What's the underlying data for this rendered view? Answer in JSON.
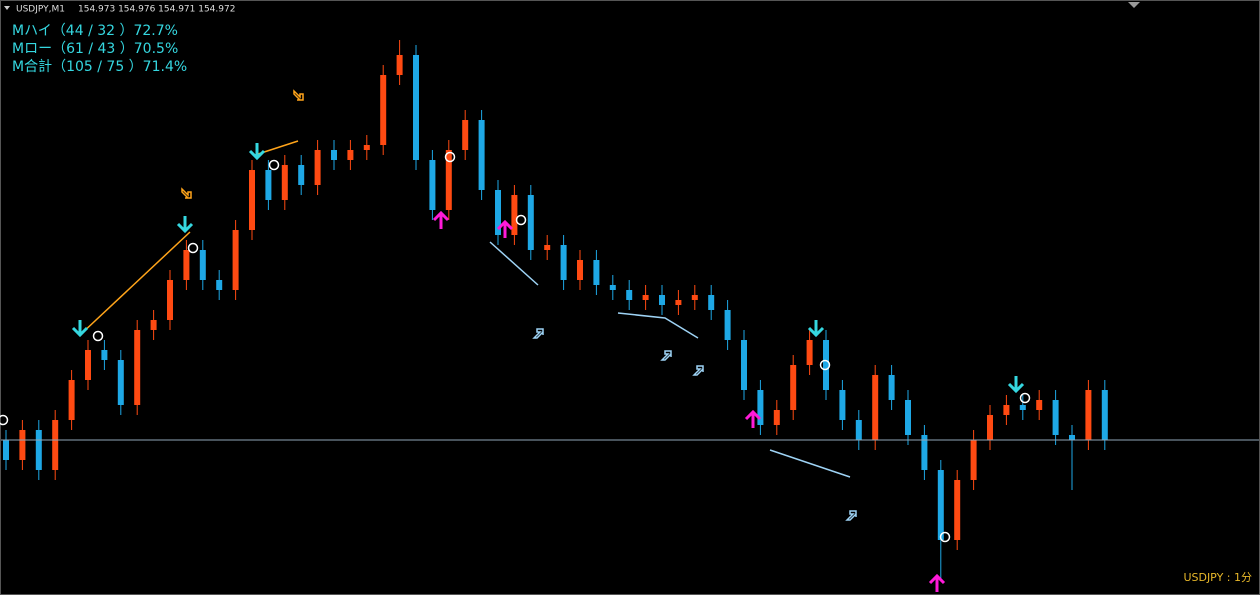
{
  "header": {
    "symbol": "USDJPY,M1",
    "ohlc": "154.973 154.976 154.971 154.972"
  },
  "stats": [
    "Mハイ（44 / 32 ）72.7%",
    "Mロー（61 / 43 ）70.5%",
    "M合計（105 / 75 ）71.4%"
  ],
  "footer": "USDJPY : 1分",
  "chart_data": {
    "type": "candlestick",
    "open": [
      154.972,
      154.968,
      154.974,
      154.966,
      154.976,
      154.984,
      154.99,
      154.988,
      154.979,
      154.994,
      154.996,
      155.004,
      155.01,
      155.004,
      155.002,
      155.014,
      155.026,
      155.02,
      155.027,
      155.023,
      155.03,
      155.028,
      155.03,
      155.031,
      155.045,
      155.049,
      155.028,
      155.018,
      155.03,
      155.036,
      155.022,
      155.013,
      155.021,
      155.01,
      155.011,
      155.004,
      155.008,
      155.003,
      155.002,
      155.0,
      155.001,
      154.999,
      155.0,
      155.001,
      154.998,
      154.992,
      154.982,
      154.975,
      154.978,
      154.987,
      154.992,
      154.982,
      154.976,
      154.972,
      154.985,
      154.98,
      154.973,
      154.966,
      154.952,
      154.964,
      154.972,
      154.977,
      154.979,
      154.978,
      154.98,
      154.973,
      154.972,
      154.982
    ],
    "high": [
      154.974,
      154.976,
      154.976,
      154.978,
      154.986,
      154.992,
      154.992,
      154.99,
      154.996,
      154.998,
      155.006,
      155.012,
      155.012,
      155.006,
      155.016,
      155.028,
      155.028,
      155.029,
      155.029,
      155.032,
      155.032,
      155.032,
      155.033,
      155.047,
      155.052,
      155.051,
      155.03,
      155.032,
      155.038,
      155.038,
      155.024,
      155.023,
      155.023,
      155.013,
      155.013,
      155.01,
      155.01,
      155.005,
      155.004,
      155.003,
      155.003,
      155.002,
      155.003,
      155.003,
      155.0,
      154.994,
      154.984,
      154.98,
      154.989,
      154.994,
      154.994,
      154.984,
      154.978,
      154.987,
      154.987,
      154.982,
      154.975,
      154.968,
      154.966,
      154.974,
      154.979,
      154.981,
      154.981,
      154.982,
      154.982,
      154.975,
      154.984,
      154.984
    ],
    "low": [
      154.966,
      154.966,
      154.964,
      154.964,
      154.974,
      154.982,
      154.986,
      154.977,
      154.977,
      154.992,
      154.994,
      155.002,
      155.002,
      155.0,
      155.0,
      155.012,
      155.018,
      155.018,
      155.021,
      155.021,
      155.026,
      155.026,
      155.028,
      155.029,
      155.043,
      155.026,
      155.016,
      155.016,
      155.028,
      155.02,
      155.011,
      155.011,
      155.008,
      155.008,
      155.002,
      155.002,
      155.001,
      155.0,
      154.998,
      154.998,
      154.997,
      154.997,
      154.998,
      154.996,
      154.99,
      154.98,
      154.973,
      154.973,
      154.976,
      154.985,
      154.98,
      154.974,
      154.97,
      154.97,
      154.978,
      154.971,
      154.964,
      154.944,
      154.95,
      154.962,
      154.97,
      154.975,
      154.976,
      154.976,
      154.971,
      154.962,
      154.97,
      154.97
    ],
    "close": [
      154.968,
      154.974,
      154.966,
      154.976,
      154.984,
      154.99,
      154.988,
      154.979,
      154.994,
      154.996,
      155.004,
      155.01,
      155.004,
      155.002,
      155.014,
      155.026,
      155.02,
      155.027,
      155.023,
      155.03,
      155.028,
      155.03,
      155.031,
      155.045,
      155.049,
      155.028,
      155.018,
      155.03,
      155.036,
      155.022,
      155.013,
      155.021,
      155.01,
      155.011,
      155.004,
      155.008,
      155.003,
      155.002,
      155.0,
      155.001,
      154.999,
      155.0,
      155.001,
      154.998,
      154.992,
      154.982,
      154.975,
      154.978,
      154.987,
      154.992,
      154.982,
      154.976,
      154.972,
      154.985,
      154.98,
      154.973,
      154.966,
      154.952,
      154.964,
      154.972,
      154.977,
      154.979,
      154.978,
      154.98,
      154.973,
      154.972,
      154.982,
      154.972
    ],
    "ylim": [
      154.942,
      155.052
    ],
    "up_color": "#ff4a12",
    "down_color": "#1ea8e6"
  }
}
